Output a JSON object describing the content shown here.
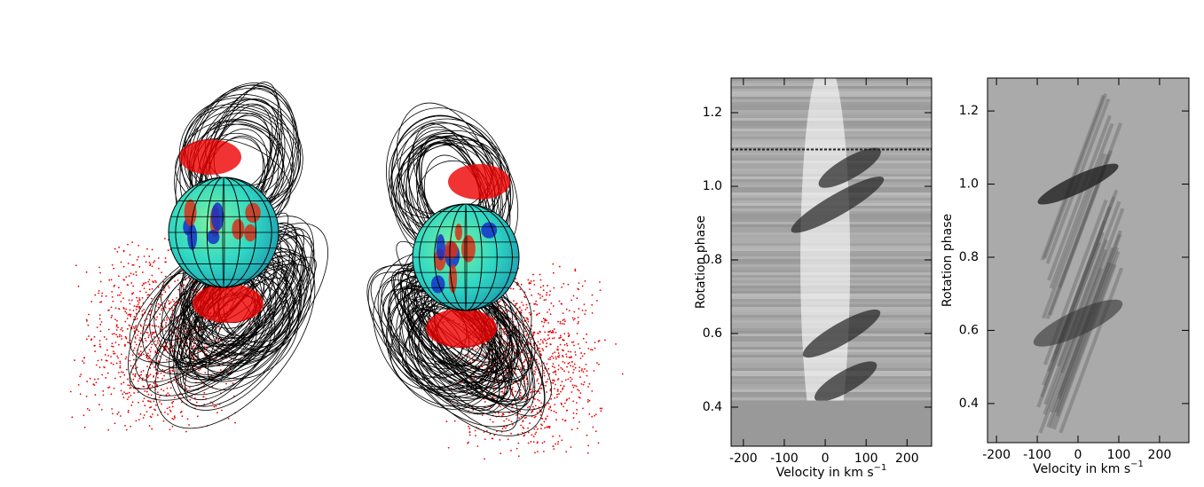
{
  "chart_data": [
    {
      "type": "heatmap",
      "xlabel": "Velocity in km s",
      "xlabel_superscript": "−1",
      "ylabel": "Rotation phase",
      "xlim": [
        -230,
        260
      ],
      "ylim": [
        0.294,
        1.294
      ],
      "xticks": [
        -200,
        -100,
        0,
        100,
        200
      ],
      "yticks": [
        0.4,
        0.6,
        0.8,
        {
          "value": 1,
          "label": "1.0"
        },
        1.2
      ]
    },
    {
      "type": "heatmap",
      "xlabel": "Velocity in km s",
      "xlabel_superscript": "−1",
      "ylabel": "Rotation phase",
      "xlim": [
        -222,
        272
      ],
      "ylim": [
        0.293,
        1.29
      ],
      "xticks": [
        -200,
        -100,
        0,
        100,
        200
      ],
      "yticks": [
        0.4,
        0.6,
        0.8,
        {
          "value": 1,
          "label": "1.0"
        },
        1.2
      ]
    }
  ]
}
